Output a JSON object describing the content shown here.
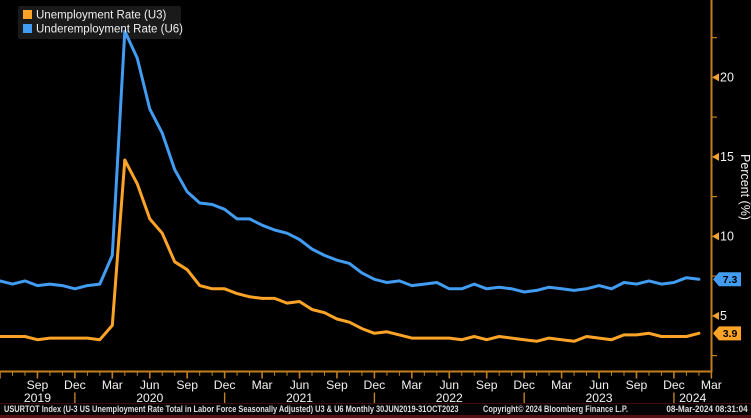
{
  "colors": {
    "background": "#000000",
    "axis": "#C08020",
    "tick_arrow": "#F2A133",
    "text": "#F2F2F2",
    "legend_background": "#1A1A1A",
    "footer_text": "#DEDEDE",
    "bottom_stripe": "#541013",
    "u3_amber": "#FDA428",
    "u6_blue": "#419CF2"
  },
  "legend": {
    "items": [
      {
        "label": "Unemployment Rate (U3)",
        "color": "#FDA428"
      },
      {
        "label": "Underemployment Rate (U6)",
        "color": "#419CF2"
      }
    ]
  },
  "chart_data": {
    "type": "line",
    "ylabel": "Percent (%)",
    "ylim": [
      1.5,
      24.9
    ],
    "y_axis_side": "right",
    "grid": false,
    "legend_position": "top-left",
    "y_major_ticks": [
      5,
      10,
      15,
      20
    ],
    "y_minor_ticks": [
      2.5,
      7.5,
      12.5,
      17.5,
      22.5
    ],
    "x_monthly": [
      "2019-06",
      "2019-07",
      "2019-08",
      "2019-09",
      "2019-10",
      "2019-11",
      "2019-12",
      "2020-01",
      "2020-02",
      "2020-03",
      "2020-04",
      "2020-05",
      "2020-06",
      "2020-07",
      "2020-08",
      "2020-09",
      "2020-10",
      "2020-11",
      "2020-12",
      "2021-01",
      "2021-02",
      "2021-03",
      "2021-04",
      "2021-05",
      "2021-06",
      "2021-07",
      "2021-08",
      "2021-09",
      "2021-10",
      "2021-11",
      "2021-12",
      "2022-01",
      "2022-02",
      "2022-03",
      "2022-04",
      "2022-05",
      "2022-06",
      "2022-07",
      "2022-08",
      "2022-09",
      "2022-10",
      "2022-11",
      "2022-12",
      "2023-01",
      "2023-02",
      "2023-03",
      "2023-04",
      "2023-05",
      "2023-06",
      "2023-07",
      "2023-08",
      "2023-09",
      "2023-10",
      "2023-11",
      "2023-12",
      "2024-01",
      "2024-02"
    ],
    "x_axis_last_tick_month": "2024-03",
    "x_year_labels": [
      "2019",
      "2020",
      "2021",
      "2022",
      "2023",
      "2024"
    ],
    "series": [
      {
        "name": "Unemployment Rate (U3)",
        "color": "#FDA428",
        "last_value_label": "3.9",
        "values": [
          3.7,
          3.7,
          3.7,
          3.5,
          3.6,
          3.6,
          3.6,
          3.6,
          3.5,
          4.4,
          14.8,
          13.3,
          11.1,
          10.2,
          8.4,
          7.9,
          6.9,
          6.7,
          6.7,
          6.4,
          6.2,
          6.1,
          6.1,
          5.8,
          5.9,
          5.4,
          5.2,
          4.8,
          4.6,
          4.2,
          3.9,
          4.0,
          3.8,
          3.6,
          3.6,
          3.6,
          3.6,
          3.5,
          3.7,
          3.5,
          3.7,
          3.6,
          3.5,
          3.4,
          3.6,
          3.5,
          3.4,
          3.7,
          3.6,
          3.5,
          3.8,
          3.8,
          3.9,
          3.7,
          3.7,
          3.7,
          3.9
        ]
      },
      {
        "name": "Underemployment Rate (U6)",
        "color": "#419CF2",
        "last_value_label": "7.3",
        "values": [
          7.2,
          7.0,
          7.2,
          6.9,
          7.0,
          6.9,
          6.7,
          6.9,
          7.0,
          8.8,
          22.9,
          21.2,
          18.0,
          16.5,
          14.2,
          12.8,
          12.1,
          12.0,
          11.7,
          11.1,
          11.1,
          10.7,
          10.4,
          10.2,
          9.8,
          9.2,
          8.8,
          8.5,
          8.3,
          7.7,
          7.3,
          7.1,
          7.2,
          6.9,
          7.0,
          7.1,
          6.7,
          6.7,
          7.0,
          6.7,
          6.8,
          6.7,
          6.5,
          6.6,
          6.8,
          6.7,
          6.6,
          6.7,
          6.9,
          6.7,
          7.1,
          7.0,
          7.2,
          7.0,
          7.1,
          7.4,
          7.3
        ]
      }
    ]
  },
  "footer": {
    "description": "USURTOT Index (U-3 US Unemployment Rate Total in Labor Force Seasonally Adjusted) U3 & U6  Monthly 30JUN2019-31OCT2023",
    "copyright": "Copyright© 2024 Bloomberg Finance L.P.",
    "timestamp": "08-Mar-2024 08:31:04"
  }
}
